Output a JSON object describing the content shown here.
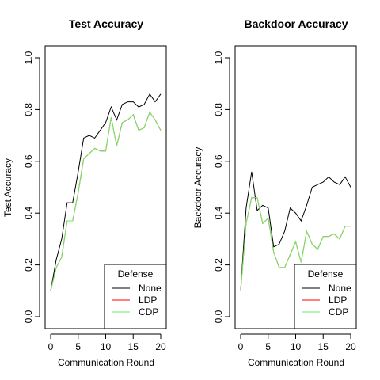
{
  "chart_data": [
    {
      "type": "line",
      "title": "Test Accuracy",
      "xlabel": "Communication Round",
      "ylabel": "Test Accuracy",
      "xlim": [
        0,
        20
      ],
      "ylim": [
        0,
        1
      ],
      "x_ticks": [
        0,
        5,
        10,
        15,
        20
      ],
      "y_ticks": [
        0.0,
        0.2,
        0.4,
        0.6,
        0.8,
        1.0
      ],
      "y_tick_labels": [
        "0.0",
        "0.2",
        "0.4",
        "0.6",
        "0.8",
        "1.0"
      ],
      "grid": false,
      "legend": {
        "title": "Defense",
        "position": "bottom-right"
      },
      "x": [
        0,
        1,
        2,
        3,
        4,
        5,
        6,
        7,
        8,
        9,
        10,
        11,
        12,
        13,
        14,
        15,
        16,
        17,
        18,
        19,
        20
      ],
      "series": [
        {
          "name": "None",
          "color": "#000000",
          "values": [
            0.1,
            0.22,
            0.3,
            0.44,
            0.44,
            0.56,
            0.69,
            0.7,
            0.69,
            0.72,
            0.75,
            0.81,
            0.76,
            0.82,
            0.83,
            0.83,
            0.81,
            0.82,
            0.86,
            0.83,
            0.86
          ]
        },
        {
          "name": "LDP",
          "color": "#ff0000",
          "values": [
            0.1,
            0.19,
            0.23,
            0.37,
            0.37,
            0.48,
            0.61,
            0.63,
            0.65,
            0.64,
            0.64,
            0.77,
            0.66,
            0.75,
            0.76,
            0.78,
            0.72,
            0.73,
            0.79,
            0.76,
            0.72
          ]
        },
        {
          "name": "CDP",
          "color": "#66ee66",
          "values": [
            0.1,
            0.19,
            0.23,
            0.37,
            0.37,
            0.48,
            0.61,
            0.63,
            0.65,
            0.64,
            0.64,
            0.77,
            0.66,
            0.75,
            0.76,
            0.78,
            0.72,
            0.73,
            0.79,
            0.76,
            0.72
          ]
        }
      ]
    },
    {
      "type": "line",
      "title": "Backdoor Accuracy",
      "xlabel": "Communication Round",
      "ylabel": "Backdoor Accuracy",
      "xlim": [
        0,
        20
      ],
      "ylim": [
        0,
        1
      ],
      "x_ticks": [
        0,
        5,
        10,
        15,
        20
      ],
      "y_ticks": [
        0.0,
        0.2,
        0.4,
        0.6,
        0.8,
        1.0
      ],
      "y_tick_labels": [
        "0.0",
        "0.2",
        "0.4",
        "0.6",
        "0.8",
        "1.0"
      ],
      "grid": false,
      "legend": {
        "title": "Defense",
        "position": "bottom-right"
      },
      "x": [
        0,
        1,
        2,
        3,
        4,
        5,
        6,
        7,
        8,
        9,
        10,
        11,
        12,
        13,
        14,
        15,
        16,
        17,
        18,
        19,
        20
      ],
      "series": [
        {
          "name": "None",
          "color": "#000000",
          "values": [
            0.1,
            0.42,
            0.56,
            0.41,
            0.43,
            0.42,
            0.27,
            0.28,
            0.33,
            0.42,
            0.4,
            0.37,
            0.43,
            0.5,
            0.51,
            0.52,
            0.54,
            0.52,
            0.51,
            0.54,
            0.5
          ]
        },
        {
          "name": "LDP",
          "color": "#ff0000",
          "values": [
            0.1,
            0.36,
            0.46,
            0.46,
            0.36,
            0.38,
            0.25,
            0.19,
            0.19,
            0.24,
            0.29,
            0.21,
            0.33,
            0.28,
            0.26,
            0.31,
            0.31,
            0.32,
            0.3,
            0.35,
            0.35
          ]
        },
        {
          "name": "CDP",
          "color": "#66ee66",
          "values": [
            0.1,
            0.36,
            0.46,
            0.46,
            0.36,
            0.38,
            0.25,
            0.19,
            0.19,
            0.24,
            0.29,
            0.21,
            0.33,
            0.28,
            0.26,
            0.31,
            0.31,
            0.32,
            0.3,
            0.35,
            0.35
          ]
        }
      ]
    }
  ]
}
